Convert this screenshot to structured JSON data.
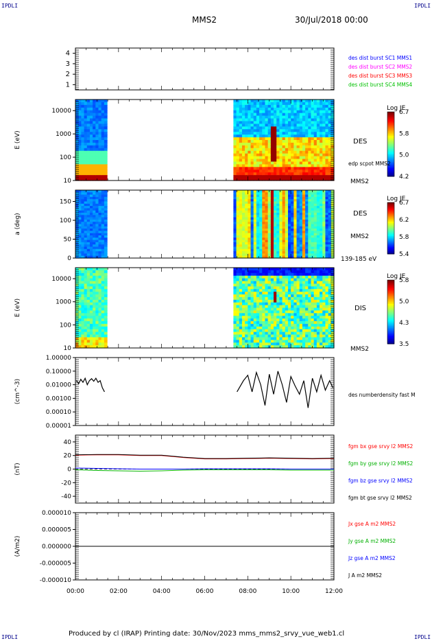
{
  "header": {
    "corner_tl": "IPDLI",
    "corner_tr": "IPDLI",
    "corner_bl": "IPDLI",
    "corner_br": "IPDLI",
    "spacecraft": "MMS2",
    "datetime": "30/Jul/2018 00:00"
  },
  "footer": {
    "text": "Produced by cl (IRAP)   Printing date: 30/Nov/2023   mms_mms2_srvy_vue_web1.cl"
  },
  "colors": {
    "mms1": "#0000ff",
    "mms2": "#ff00ff",
    "mms3": "#ff0000",
    "mms4": "#00c000",
    "bx": "#ff0000",
    "by": "#00b000",
    "bz": "#0000ff",
    "bt": "#000000"
  },
  "chart_data": [
    {
      "type": "line",
      "ylim": [
        0.5,
        4.5
      ],
      "yticks": [
        "1",
        "2",
        "3",
        "4"
      ],
      "series": [
        {
          "name": "des dist burst SC1 MMS1",
          "values": []
        },
        {
          "name": "des dist burst SC2 MMS2",
          "values": []
        },
        {
          "name": "des dist burst SC3 MMS3",
          "values": []
        },
        {
          "name": "des dist burst SC4 MMS4",
          "values": []
        }
      ]
    },
    {
      "type": "heatmap",
      "ylabel": "E (eV)",
      "yscale": "log",
      "ylim": [
        10,
        30000
      ],
      "yticks": [
        "10",
        "100",
        "1000",
        "10000"
      ],
      "right_labels": [
        "DES",
        "edp scpot MMS2",
        "MMS2"
      ],
      "colorbar": {
        "title": "Log JE",
        "min": 4.2,
        "max": 6.7,
        "ticks": [
          "6.7",
          "5.8",
          "5.0",
          "4.2"
        ]
      },
      "data_intervals_hours": [
        [
          0.0,
          1.35
        ],
        [
          7.3,
          12.0
        ]
      ]
    },
    {
      "type": "heatmap",
      "ylabel": "a (deg)",
      "ylim": [
        0,
        180
      ],
      "yticks": [
        "0",
        "50",
        "100",
        "150"
      ],
      "right_labels": [
        "DES",
        "MMS2",
        "139-185 eV"
      ],
      "colorbar": {
        "title": "Log JE",
        "min": 5.4,
        "max": 6.7,
        "ticks": [
          "6.7",
          "6.2",
          "5.8",
          "5.4"
        ]
      },
      "data_intervals_hours": [
        [
          0.0,
          1.35
        ],
        [
          7.3,
          12.0
        ]
      ]
    },
    {
      "type": "heatmap",
      "ylabel": "E (eV)",
      "yscale": "log",
      "ylim": [
        10,
        30000
      ],
      "yticks": [
        "10",
        "100",
        "1000",
        "10000"
      ],
      "right_labels": [
        "DIS",
        "MMS2"
      ],
      "colorbar": {
        "title": "Log JE",
        "min": 3.5,
        "max": 5.8,
        "ticks": [
          "5.8",
          "5.0",
          "4.3",
          "3.5"
        ]
      },
      "data_intervals_hours": [
        [
          0.0,
          1.35
        ],
        [
          7.3,
          12.0
        ]
      ]
    },
    {
      "type": "line",
      "ylabel": "(cm^-3)",
      "yscale": "log",
      "ylim": [
        1e-05,
        1.0
      ],
      "yticks": [
        "0.00001",
        "0.00010",
        "0.00100",
        "0.01000",
        "0.10000",
        "1.00000"
      ],
      "series": [
        {
          "name": "des numberdensity fast M",
          "x": [
            0.05,
            0.15,
            0.25,
            0.35,
            0.45,
            0.55,
            0.65,
            0.75,
            0.85,
            0.95,
            1.05,
            1.15,
            1.25,
            1.35,
            7.5,
            7.8,
            8.0,
            8.2,
            8.4,
            8.6,
            8.8,
            9.0,
            9.2,
            9.4,
            9.6,
            9.8,
            10.0,
            10.2,
            10.4,
            10.6,
            10.8,
            11.0,
            11.2,
            11.4,
            11.6,
            11.8,
            11.95
          ],
          "values": [
            0.02,
            0.012,
            0.025,
            0.015,
            0.03,
            0.01,
            0.02,
            0.028,
            0.018,
            0.03,
            0.015,
            0.02,
            0.006,
            0.003,
            0.003,
            0.02,
            0.05,
            0.003,
            0.08,
            0.01,
            0.0003,
            0.06,
            0.002,
            0.1,
            0.01,
            0.0005,
            0.04,
            0.008,
            0.002,
            0.02,
            0.0002,
            0.03,
            0.003,
            0.05,
            0.004,
            0.02,
            0.006
          ]
        }
      ]
    },
    {
      "type": "line",
      "ylabel": "(nT)",
      "ylim": [
        -50,
        50
      ],
      "yticks": [
        "-40",
        "-20",
        "0",
        "20",
        "40"
      ],
      "x": [
        0,
        1,
        2,
        3,
        4,
        5,
        6,
        7,
        8,
        9,
        10,
        11,
        12
      ],
      "series": [
        {
          "name": "fgm bx gse srvy l2 MMS2",
          "values": [
            20.5,
            21,
            21,
            20,
            20,
            17,
            15,
            15,
            15.5,
            16,
            15.5,
            15,
            15.5
          ]
        },
        {
          "name": "fgm by gse srvy l2 MMS2",
          "values": [
            -1,
            -2,
            -2.5,
            -3,
            -2.5,
            -1.5,
            -1,
            -1,
            -1,
            -1,
            -1.5,
            -1.5,
            -1.5
          ]
        },
        {
          "name": "fgm bz gse srvy l2 MMS2",
          "values": [
            1.5,
            1,
            0.5,
            0,
            0,
            0,
            0.5,
            0.5,
            0.5,
            0.5,
            0,
            0,
            0
          ]
        },
        {
          "name": "fgm bt gse srvy l2 MMS2",
          "values": [
            21,
            21.5,
            21.5,
            20.5,
            20.5,
            17.5,
            15.5,
            15.5,
            16,
            16.5,
            16,
            15.5,
            16
          ]
        }
      ]
    },
    {
      "type": "line",
      "ylabel": "(A/m2)",
      "ylim": [
        -1e-05,
        1e-05
      ],
      "yticks": [
        "-0.000010",
        "-0.000005",
        "0.000000",
        "0.000005",
        "0.000010"
      ],
      "xlabel_ticks": [
        "00:00",
        "02:00",
        "04:00",
        "06:00",
        "08:00",
        "10:00",
        "12:00"
      ],
      "xlim": [
        0,
        12
      ],
      "series": [
        {
          "name": "Jx gse A m2 MMS2",
          "values": []
        },
        {
          "name": "Jy gse A m2 MMS2",
          "values": []
        },
        {
          "name": "Jz gse A m2 MMS2",
          "values": []
        },
        {
          "name": "J A m2 MMS2",
          "values": []
        }
      ]
    }
  ]
}
